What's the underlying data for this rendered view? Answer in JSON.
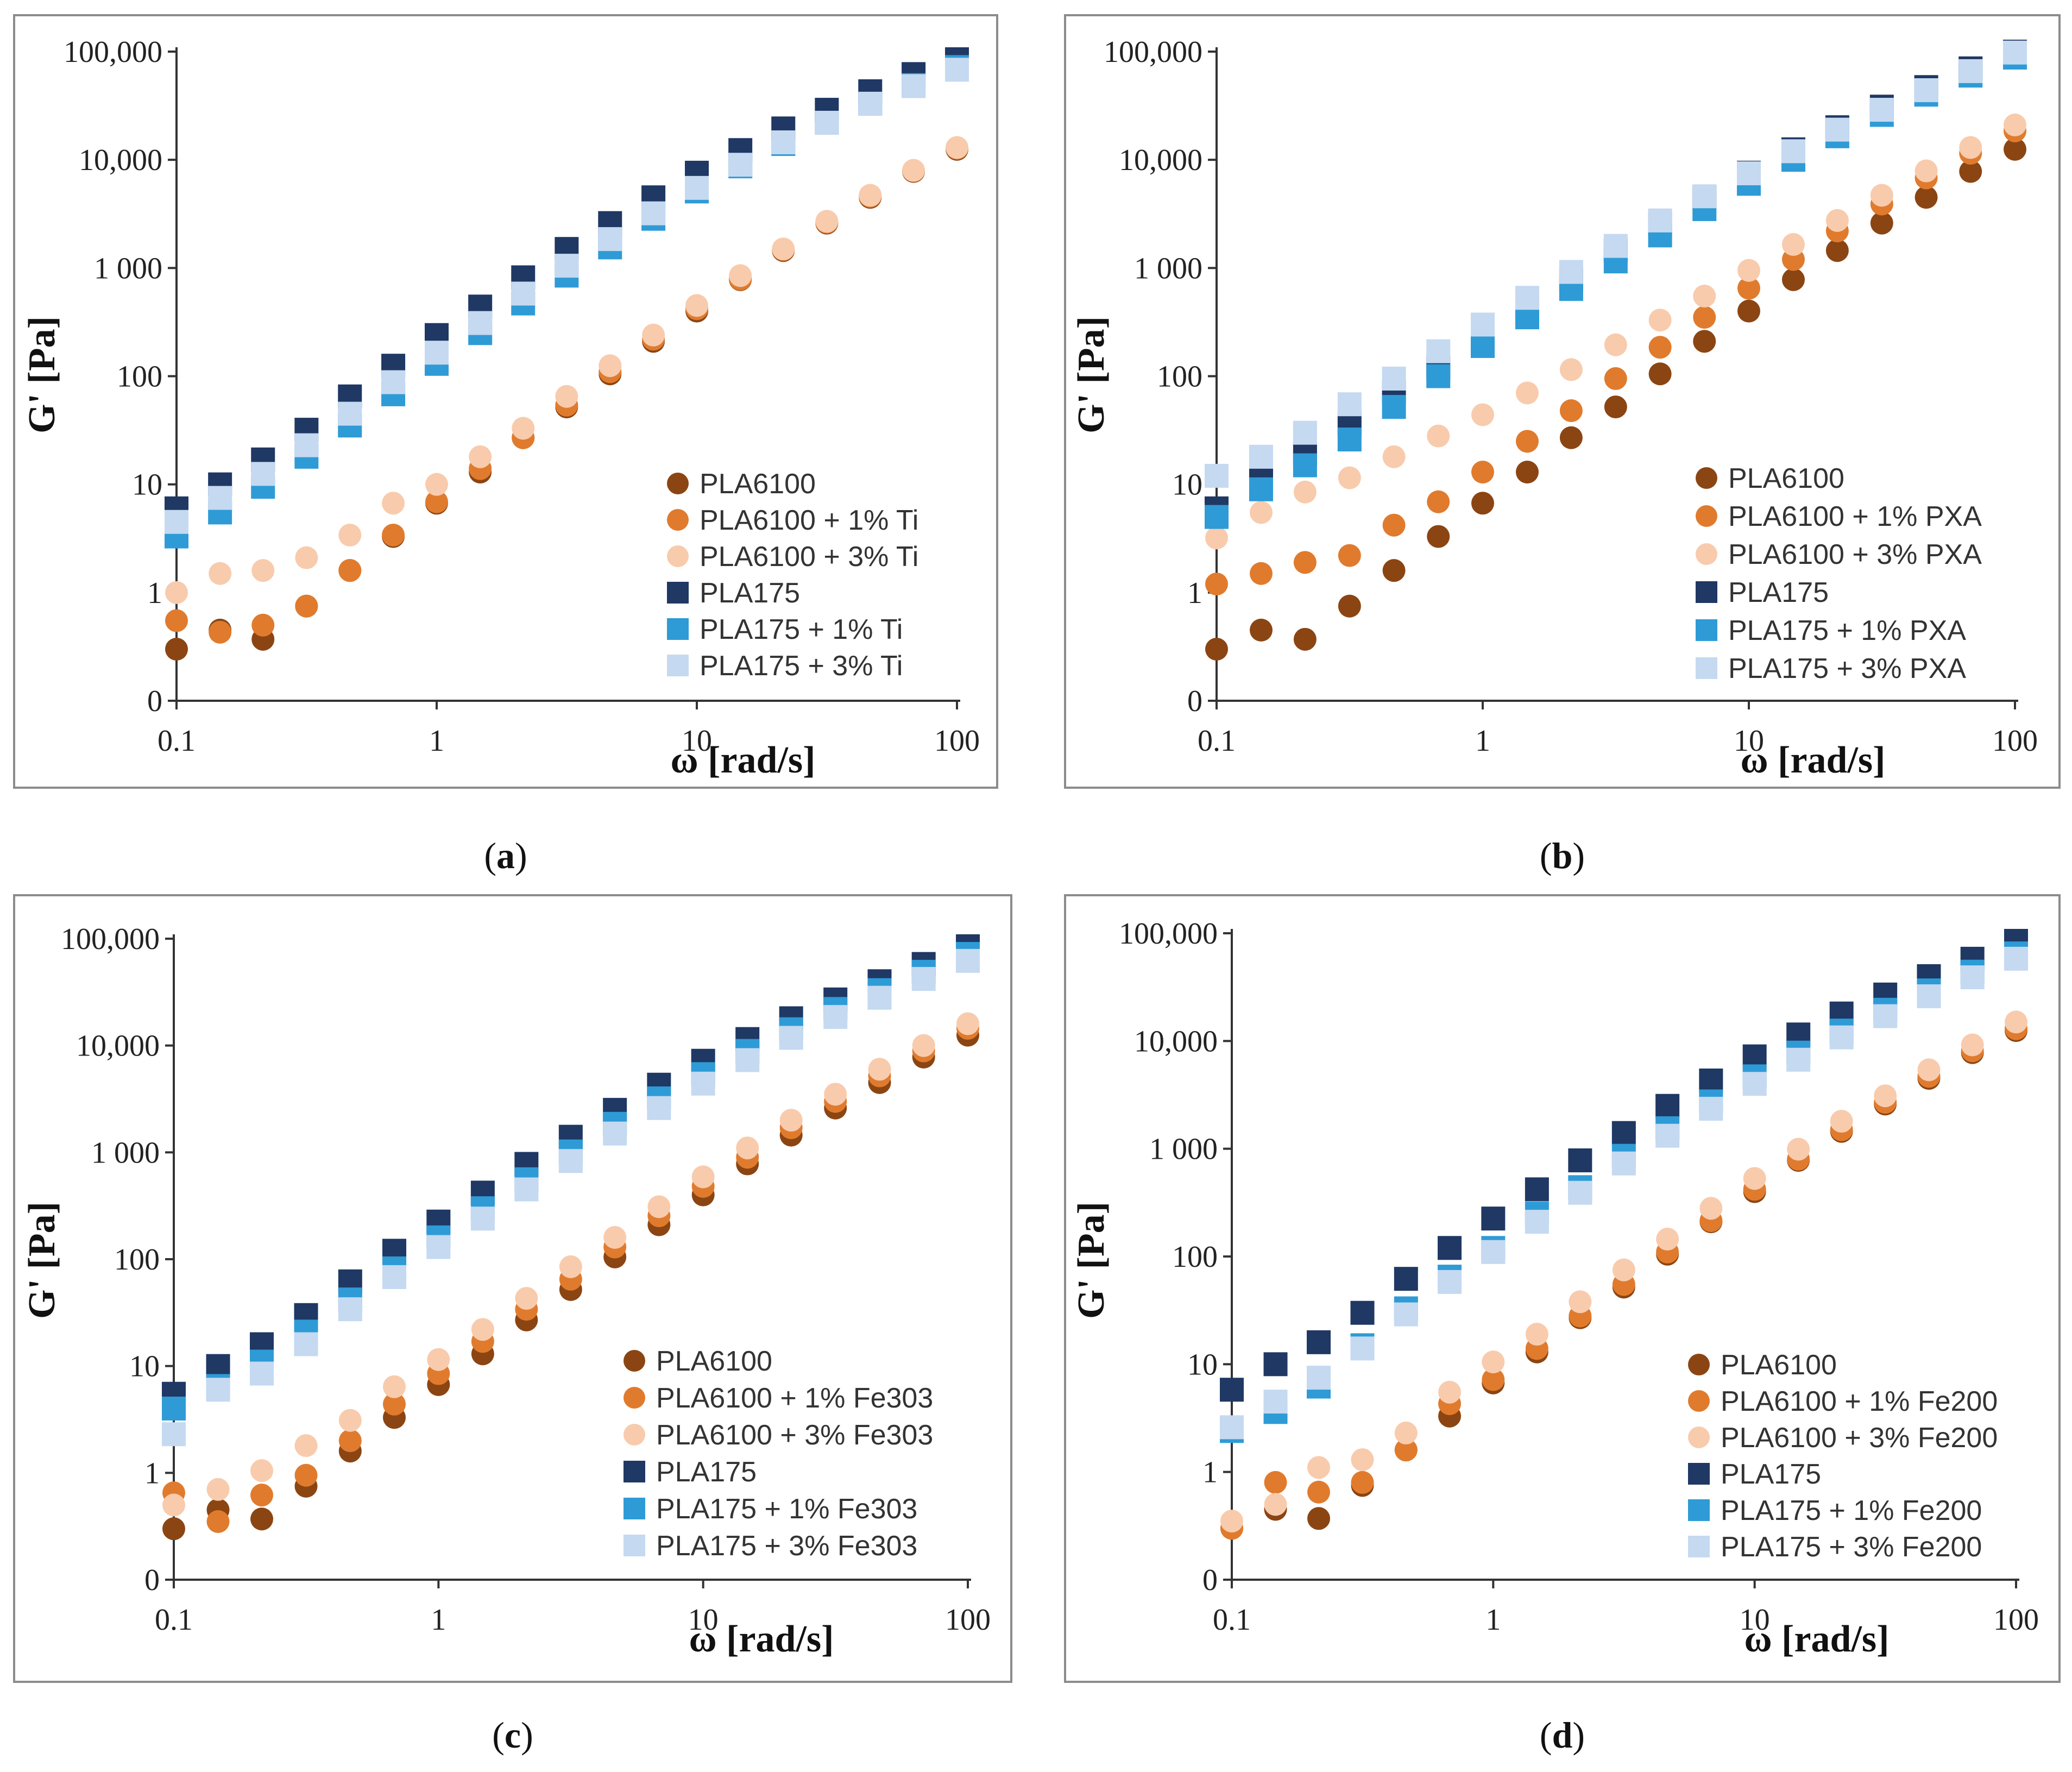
{
  "figure": {
    "colors": {
      "PLA6100": "#8B4513",
      "PLA6100_1": "#E07B2E",
      "PLA6100_3": "#F8CBAD",
      "PLA175": "#1F3864",
      "PLA175_1": "#2E9BD6",
      "PLA175_3": "#C5D9F1"
    }
  },
  "chart_data": [
    {
      "type": "scatter",
      "panel_label": "a",
      "xlabel": "ω [rad/s]",
      "ylabel": "G' [Pa]",
      "xscale": "log",
      "yscale": "log",
      "xlim": [
        0.1,
        100
      ],
      "ylim": [
        0.1,
        100000
      ],
      "xticks": [
        {
          "v": 0.1,
          "label": "0.1"
        },
        {
          "v": 1,
          "label": "1"
        },
        {
          "v": 10,
          "label": "10"
        },
        {
          "v": 100,
          "label": "100"
        }
      ],
      "yticks": [
        {
          "v": 0.1,
          "label": "0"
        },
        {
          "v": 1,
          "label": "1"
        },
        {
          "v": 10,
          "label": "10"
        },
        {
          "v": 100,
          "label": "100"
        },
        {
          "v": 1000,
          "label": "1 000"
        },
        {
          "v": 10000,
          "label": "10,000"
        },
        {
          "v": 100000,
          "label": "100,000"
        }
      ],
      "legend_position": "bottom-right",
      "x": [
        0.1,
        0.147,
        0.215,
        0.316,
        0.464,
        0.681,
        1,
        1.47,
        2.15,
        3.16,
        4.64,
        6.81,
        10,
        14.7,
        21.5,
        31.6,
        46.4,
        68.1,
        100
      ],
      "series": [
        {
          "name": "PLA6100",
          "marker": "circle",
          "color_key": "PLA6100",
          "values": [
            0.3,
            0.45,
            0.37,
            0.75,
            1.6,
            3.3,
            6.7,
            13,
            27,
            52,
            105,
            210,
            400,
            780,
            1450,
            2600,
            4500,
            7800,
            12500
          ]
        },
        {
          "name": "PLA6100 + 1% Ti",
          "marker": "circle",
          "color_key": "PLA6100_1",
          "values": [
            0.55,
            0.43,
            0.5,
            0.75,
            1.6,
            3.4,
            6.9,
            14,
            27,
            54,
            110,
            220,
            420,
            790,
            1480,
            2650,
            4600,
            7900,
            12800
          ]
        },
        {
          "name": "PLA6100 + 3% Ti",
          "marker": "circle",
          "color_key": "PLA6100_3",
          "values": [
            1.0,
            1.5,
            1.6,
            2.1,
            3.4,
            6.7,
            10,
            18,
            33,
            65,
            125,
            240,
            450,
            850,
            1500,
            2700,
            4700,
            8000,
            13000
          ]
        },
        {
          "name": "PLA175",
          "marker": "square",
          "color_key": "PLA175",
          "values": [
            6.0,
            10,
            17,
            32,
            65,
            125,
            240,
            440,
            820,
            1500,
            2600,
            4500,
            7600,
            12300,
            19500,
            29000,
            43000,
            62000,
            85000
          ]
        },
        {
          "name": "PLA175 + 1% Ti",
          "marker": "square",
          "color_key": "PLA175_1",
          "values": [
            3.3,
            5.5,
            9.5,
            18,
            35,
            68,
            130,
            250,
            470,
            850,
            1550,
            2850,
            5100,
            8700,
            14000,
            22000,
            33000,
            49000,
            72000
          ]
        },
        {
          "name": "PLA175 + 3% Ti",
          "marker": "square",
          "color_key": "PLA175_3",
          "values": [
            4.5,
            7.5,
            12.5,
            23,
            45,
            88,
            165,
            310,
            580,
            1050,
            1850,
            3200,
            5500,
            9000,
            14500,
            22000,
            33000,
            48000,
            68000
          ]
        }
      ]
    },
    {
      "type": "scatter",
      "panel_label": "b",
      "xlabel": "ω [rad/s]",
      "ylabel": "G' [Pa]",
      "xscale": "log",
      "yscale": "log",
      "xlim": [
        0.1,
        100
      ],
      "ylim": [
        0.1,
        100000
      ],
      "xticks": [
        {
          "v": 0.1,
          "label": "0.1"
        },
        {
          "v": 1,
          "label": "1"
        },
        {
          "v": 10,
          "label": "10"
        },
        {
          "v": 100,
          "label": "100"
        }
      ],
      "yticks": [
        {
          "v": 0.1,
          "label": "0"
        },
        {
          "v": 1,
          "label": "1"
        },
        {
          "v": 10,
          "label": "10"
        },
        {
          "v": 100,
          "label": "100"
        },
        {
          "v": 1000,
          "label": "1 000"
        },
        {
          "v": 10000,
          "label": "10,000"
        },
        {
          "v": 100000,
          "label": "100,000"
        }
      ],
      "legend_position": "bottom-right",
      "x": [
        0.1,
        0.147,
        0.215,
        0.316,
        0.464,
        0.681,
        1,
        1.47,
        2.15,
        3.16,
        4.64,
        6.81,
        10,
        14.7,
        21.5,
        31.6,
        46.4,
        68.1,
        100
      ],
      "series": [
        {
          "name": "PLA6100",
          "marker": "circle",
          "color_key": "PLA6100",
          "values": [
            0.3,
            0.45,
            0.37,
            0.75,
            1.6,
            3.3,
            6.7,
            13,
            27,
            52,
            105,
            210,
            400,
            780,
            1450,
            2600,
            4500,
            7800,
            12500
          ]
        },
        {
          "name": "PLA6100 + 1% PXA",
          "marker": "circle",
          "color_key": "PLA6100_1",
          "values": [
            1.2,
            1.5,
            1.9,
            2.2,
            4.2,
            6.9,
            13,
            25,
            48,
            95,
            185,
            350,
            650,
            1200,
            2200,
            3900,
            6800,
            11500,
            18500
          ]
        },
        {
          "name": "PLA6100 + 3% PXA",
          "marker": "circle",
          "color_key": "PLA6100_3",
          "values": [
            3.2,
            5.5,
            8.5,
            11.5,
            18,
            28,
            44,
            70,
            115,
            195,
            330,
            550,
            950,
            1650,
            2750,
            4700,
            7900,
            13000,
            21000
          ]
        },
        {
          "name": "PLA175",
          "marker": "square",
          "color_key": "PLA175",
          "values": [
            6.0,
            11,
            19,
            36,
            70,
            120,
            225,
            420,
            780,
            1450,
            2550,
            4500,
            7600,
            12500,
            20000,
            31000,
            47000,
            70000,
            100000
          ]
        },
        {
          "name": "PLA175 + 1% PXA",
          "marker": "square",
          "color_key": "PLA175_1",
          "values": [
            5.0,
            9.0,
            15,
            26,
            52,
            100,
            190,
            350,
            640,
            1150,
            2000,
            3500,
            6000,
            10000,
            16500,
            26000,
            40000,
            60000,
            88000
          ]
        },
        {
          "name": "PLA175 + 3% PXA",
          "marker": "square",
          "color_key": "PLA175_3",
          "values": [
            12,
            18,
            30,
            55,
            95,
            170,
            300,
            530,
            920,
            1600,
            2750,
            4600,
            7500,
            12000,
            19000,
            29000,
            44000,
            66000,
            98000
          ]
        }
      ]
    },
    {
      "type": "scatter",
      "panel_label": "c",
      "xlabel": "ω [rad/s]",
      "ylabel": "G' [Pa]",
      "xscale": "log",
      "yscale": "log",
      "xlim": [
        0.1,
        100
      ],
      "ylim": [
        0.1,
        100000
      ],
      "xticks": [
        {
          "v": 0.1,
          "label": "0.1"
        },
        {
          "v": 1,
          "label": "1"
        },
        {
          "v": 10,
          "label": "10"
        },
        {
          "v": 100,
          "label": "100"
        }
      ],
      "yticks": [
        {
          "v": 0.1,
          "label": "0"
        },
        {
          "v": 1,
          "label": "1"
        },
        {
          "v": 10,
          "label": "10"
        },
        {
          "v": 100,
          "label": "100"
        },
        {
          "v": 1000,
          "label": "1 000"
        },
        {
          "v": 10000,
          "label": "10,000"
        },
        {
          "v": 100000,
          "label": "100,000"
        }
      ],
      "legend_position": "bottom-right",
      "x": [
        0.1,
        0.147,
        0.215,
        0.316,
        0.464,
        0.681,
        1,
        1.47,
        2.15,
        3.16,
        4.64,
        6.81,
        10,
        14.7,
        21.5,
        31.6,
        46.4,
        68.1,
        100
      ],
      "series": [
        {
          "name": "PLA6100",
          "marker": "circle",
          "color_key": "PLA6100",
          "values": [
            0.3,
            0.45,
            0.37,
            0.75,
            1.6,
            3.3,
            6.7,
            13,
            27,
            52,
            105,
            210,
            400,
            780,
            1450,
            2600,
            4500,
            7800,
            12500
          ]
        },
        {
          "name": "PLA6100 + 1% Fe303",
          "marker": "circle",
          "color_key": "PLA6100_1",
          "values": [
            0.65,
            0.35,
            0.62,
            0.95,
            2.0,
            4.4,
            8.5,
            17,
            34,
            65,
            130,
            255,
            480,
            900,
            1700,
            3000,
            5200,
            8900,
            14500
          ]
        },
        {
          "name": "PLA6100 + 3% Fe303",
          "marker": "circle",
          "color_key": "PLA6100_3",
          "values": [
            0.5,
            0.7,
            1.05,
            1.8,
            3.1,
            6.4,
            11.5,
            22,
            43,
            85,
            160,
            310,
            590,
            1100,
            2000,
            3500,
            6000,
            10000,
            16000
          ]
        },
        {
          "name": "PLA175",
          "marker": "square",
          "color_key": "PLA175",
          "values": [
            5.5,
            10,
            16,
            30,
            62,
            120,
            225,
            420,
            780,
            1400,
            2500,
            4300,
            7200,
            11500,
            18000,
            27000,
            40000,
            58000,
            85000
          ]
        },
        {
          "name": "PLA175 + 1% Fe303",
          "marker": "square",
          "color_key": "PLA175_1",
          "values": [
            4.0,
            6.5,
            11,
            21,
            42,
            82,
            160,
            300,
            560,
            1020,
            1850,
            3200,
            5400,
            8900,
            14200,
            22000,
            33000,
            49000,
            72000
          ]
        },
        {
          "name": "PLA175 + 3% Fe303",
          "marker": "square",
          "color_key": "PLA175_3",
          "values": [
            2.3,
            6.0,
            8.5,
            16,
            34,
            68,
            130,
            240,
            450,
            830,
            1500,
            2600,
            4400,
            7300,
            11800,
            18500,
            28000,
            42000,
            62000
          ]
        }
      ]
    },
    {
      "type": "scatter",
      "panel_label": "d",
      "xlabel": "ω [rad/s]",
      "ylabel": "G' [Pa]",
      "xscale": "log",
      "yscale": "log",
      "xlim": [
        0.1,
        100
      ],
      "ylim": [
        0.1,
        100000
      ],
      "xticks": [
        {
          "v": 0.1,
          "label": "0.1"
        },
        {
          "v": 1,
          "label": "1"
        },
        {
          "v": 10,
          "label": "10"
        },
        {
          "v": 100,
          "label": "100"
        }
      ],
      "yticks": [
        {
          "v": 0.1,
          "label": "0"
        },
        {
          "v": 1,
          "label": "1"
        },
        {
          "v": 10,
          "label": "10"
        },
        {
          "v": 100,
          "label": "100"
        },
        {
          "v": 1000,
          "label": "1 000"
        },
        {
          "v": 10000,
          "label": "10,000"
        },
        {
          "v": 100000,
          "label": "100,000"
        }
      ],
      "legend_position": "bottom-right",
      "x": [
        0.1,
        0.147,
        0.215,
        0.316,
        0.464,
        0.681,
        1,
        1.47,
        2.15,
        3.16,
        4.64,
        6.81,
        10,
        14.7,
        21.5,
        31.6,
        46.4,
        68.1,
        100
      ],
      "series": [
        {
          "name": "PLA6100",
          "marker": "circle",
          "color_key": "PLA6100",
          "values": [
            0.3,
            0.45,
            0.37,
            0.75,
            1.6,
            3.3,
            6.7,
            13,
            27,
            52,
            105,
            210,
            400,
            780,
            1450,
            2600,
            4500,
            7800,
            12500
          ]
        },
        {
          "name": "PLA6100 + 1% Fe200",
          "marker": "circle",
          "color_key": "PLA6100_1",
          "values": [
            0.3,
            0.8,
            0.65,
            0.8,
            1.6,
            4.3,
            7.2,
            14,
            28,
            55,
            110,
            215,
            420,
            800,
            1500,
            2700,
            4700,
            8100,
            13000
          ]
        },
        {
          "name": "PLA6100 + 3% Fe200",
          "marker": "circle",
          "color_key": "PLA6100_3",
          "values": [
            0.35,
            0.5,
            1.1,
            1.3,
            2.3,
            5.5,
            10.5,
            19,
            38,
            75,
            145,
            280,
            530,
            990,
            1800,
            3100,
            5400,
            9200,
            15000
          ]
        },
        {
          "name": "PLA175",
          "marker": "square",
          "color_key": "PLA175",
          "values": [
            5.8,
            10,
            16,
            30,
            62,
            120,
            225,
            420,
            780,
            1400,
            2500,
            4300,
            7200,
            11500,
            18000,
            27000,
            40000,
            58000,
            85000
          ]
        },
        {
          "name": "PLA175 + 1% Fe200",
          "marker": "square",
          "color_key": "PLA175_1",
          "values": [
            2.4,
            3.6,
            6.2,
            15,
            33,
            65,
            120,
            250,
            440,
            860,
            1550,
            2750,
            4700,
            7800,
            12500,
            19500,
            29500,
            44000,
            65000
          ]
        },
        {
          "name": "PLA175 + 3% Fe200",
          "marker": "square",
          "color_key": "PLA175_3",
          "values": [
            2.6,
            4.5,
            7.5,
            14,
            29,
            58,
            110,
            210,
            390,
            730,
            1320,
            2350,
            4000,
            6700,
            10800,
            17000,
            26000,
            39000,
            58000
          ]
        }
      ]
    }
  ]
}
